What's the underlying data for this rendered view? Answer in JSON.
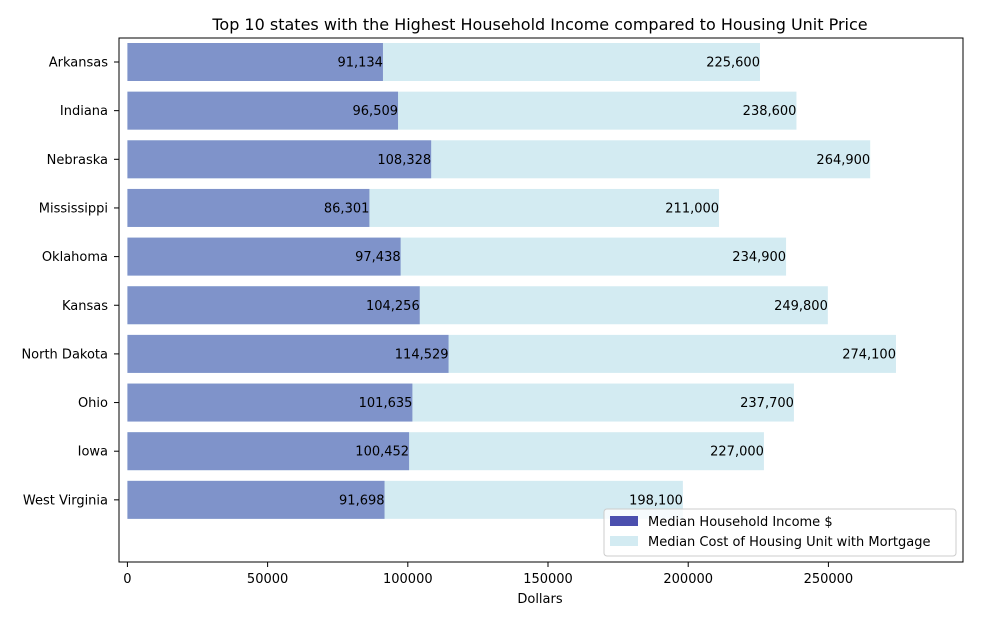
{
  "chart_data": {
    "type": "bar",
    "orientation": "horizontal",
    "title": "Top 10 states with the Highest Household Income compared to Housing Unit Price",
    "xlabel": "Dollars",
    "ylabel": "",
    "xlim": [
      -3000,
      298000
    ],
    "xticks": [
      0,
      50000,
      100000,
      150000,
      200000,
      250000
    ],
    "categories": [
      "Arkansas",
      "Indiana",
      "Nebraska",
      "Mississippi",
      "Oklahoma",
      "Kansas",
      "North Dakota",
      "Ohio",
      "Iowa",
      "West Virginia"
    ],
    "series": [
      {
        "name": "Median Cost of Housing Unit with Mortgage",
        "color": "#d3ebf2",
        "values": [
          225600,
          238600,
          264900,
          211000,
          234900,
          249800,
          274100,
          237700,
          227000,
          198100
        ],
        "labels": [
          "225,600",
          "238,600",
          "264,900",
          "211,000",
          "234,900",
          "249,800",
          "274,100",
          "237,700",
          "227,000",
          "198,100"
        ]
      },
      {
        "name": "Median Household Income $",
        "color": "#7f93ca",
        "legend_color": "#4b4fae",
        "values": [
          91134,
          96509,
          108328,
          86301,
          97438,
          104256,
          114529,
          101635,
          100452,
          91698
        ],
        "labels": [
          "91,134",
          "96,509",
          "108,328",
          "86,301",
          "97,438",
          "104,256",
          "114,529",
          "101,635",
          "100,452",
          "91,698"
        ]
      }
    ],
    "legend_order": [
      "Median Household Income $",
      "Median Cost of Housing Unit with Mortgage"
    ],
    "legend": "bottom-right",
    "grid": false
  }
}
